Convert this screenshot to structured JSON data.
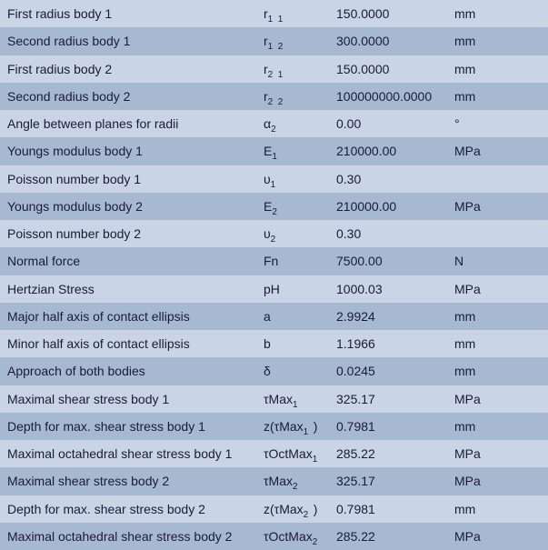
{
  "params_table": {
    "type": "table",
    "background_color_odd": "#c9d5e4",
    "background_color_even": "#a7b9d1",
    "text_color": "#1a1a3a",
    "font_size": 14,
    "row_height": 30.25,
    "columns": [
      "label",
      "symbol",
      "value",
      "unit"
    ],
    "rows": [
      {
        "label": "First radius body 1",
        "symbol": "r<sub>1&nbsp;&nbsp;1</sub>",
        "value": "150.0000",
        "unit": "mm"
      },
      {
        "label": "Second radius body 1",
        "symbol": "r<sub>1&nbsp;&nbsp;2</sub>",
        "value": "300.0000",
        "unit": "mm"
      },
      {
        "label": "First radius body 2",
        "symbol": "r<sub>2&nbsp;&nbsp;1</sub>",
        "value": "150.0000",
        "unit": "mm"
      },
      {
        "label": "Second radius body 2",
        "symbol": "r<sub>2&nbsp;&nbsp;2</sub>",
        "value": "100000000.0000",
        "unit": "mm"
      },
      {
        "label": "Angle between planes for radii",
        "symbol": "α<sub>2</sub>",
        "value": "0.00",
        "unit": "°"
      },
      {
        "label": "Youngs modulus body 1",
        "symbol": "E<sub>1</sub>",
        "value": "210000.00",
        "unit": "MPa"
      },
      {
        "label": "Poisson number body 1",
        "symbol": "υ<sub>1</sub>",
        "value": "0.30",
        "unit": ""
      },
      {
        "label": "Youngs modulus body 2",
        "symbol": "E<sub>2</sub>",
        "value": "210000.00",
        "unit": "MPa"
      },
      {
        "label": "Poisson number body 2",
        "symbol": "υ<sub>2</sub>",
        "value": "0.30",
        "unit": ""
      },
      {
        "label": "Normal force",
        "symbol": "Fn",
        "value": "7500.00",
        "unit": "N"
      },
      {
        "label": "Hertzian Stress",
        "symbol": "pH",
        "value": "1000.03",
        "unit": "MPa"
      },
      {
        "label": "Major half axis of contact ellipsis",
        "symbol": "a",
        "value": "2.9924",
        "unit": "mm"
      },
      {
        "label": "Minor half axis of contact ellipsis",
        "symbol": "b",
        "value": "1.1966",
        "unit": "mm"
      },
      {
        "label": "Approach of both bodies",
        "symbol": "δ",
        "value": "0.0245",
        "unit": "mm"
      },
      {
        "label": "Maximal shear stress body 1",
        "symbol": "τMax<sub>1</sub>",
        "value": "325.17",
        "unit": "MPa"
      },
      {
        "label": "Depth for max. shear stress body 1",
        "symbol": "z(τMax<sub>1&nbsp;&nbsp;</sub>)",
        "value": "0.7981",
        "unit": "mm"
      },
      {
        "label": "Maximal octahedral shear stress body 1",
        "symbol": "τOctMax<sub>1</sub>",
        "value": "285.22",
        "unit": "MPa"
      },
      {
        "label": "Maximal shear stress body 2",
        "symbol": "τMax<sub>2</sub>",
        "value": "325.17",
        "unit": "MPa"
      },
      {
        "label": "Depth for max. shear stress body 2",
        "symbol": "z(τMax<sub>2&nbsp;&nbsp;</sub>)",
        "value": "0.7981",
        "unit": "mm"
      },
      {
        "label": "Maximal octahedral shear stress body 2",
        "symbol": "τOctMax<sub>2</sub>",
        "value": "285.22",
        "unit": "MPa"
      }
    ]
  }
}
